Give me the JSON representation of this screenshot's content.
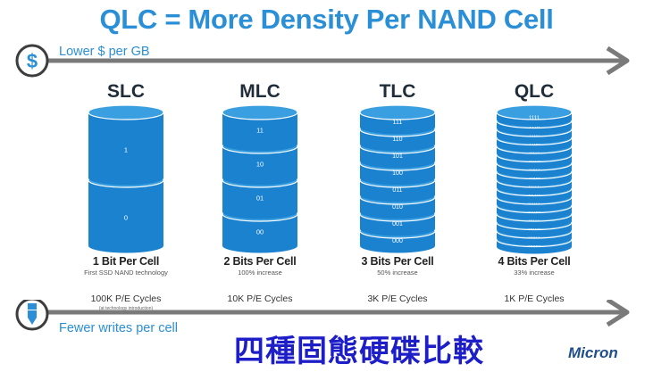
{
  "title": "QLC = More Density Per NAND Cell",
  "top_arrow": {
    "label": "Lower $ per GB",
    "icon": "dollar-icon"
  },
  "bottom_arrow": {
    "label": "Fewer writes per cell",
    "icon": "pen-icon"
  },
  "columns": [
    {
      "name": "SLC",
      "bits_label": "1 Bit Per Cell",
      "subtitle": "First SSD NAND technology",
      "cycles": "100K P/E Cycles",
      "note": "(at technology introduction)",
      "layers": [
        "1",
        "0"
      ]
    },
    {
      "name": "MLC",
      "bits_label": "2 Bits Per Cell",
      "subtitle": "100% increase",
      "cycles": "10K P/E Cycles",
      "note": "",
      "layers": [
        "11",
        "10",
        "01",
        "00"
      ]
    },
    {
      "name": "TLC",
      "bits_label": "3 Bits Per Cell",
      "subtitle": "50% increase",
      "cycles": "3K P/E Cycles",
      "note": "",
      "layers": [
        "111",
        "110",
        "101",
        "100",
        "011",
        "010",
        "001",
        "000"
      ]
    },
    {
      "name": "QLC",
      "bits_label": "4 Bits Per Cell",
      "subtitle": "33% increase",
      "cycles": "1K P/E Cycles",
      "note": "",
      "layers": [
        "1111",
        "1110",
        "1101",
        "1100",
        "1011",
        "1010",
        "1001",
        "1000",
        "0111",
        "0110",
        "0101",
        "0100",
        "0011",
        "0010",
        "0001",
        "0000"
      ]
    }
  ],
  "caption_chinese": "四種固態硬碟比較",
  "brand": "Micron",
  "colors": {
    "blue": "#1b82d0",
    "blue_light": "#3a9fe0",
    "title": "#2a8fd6",
    "arrow": "#7a7a7a",
    "chinese": "#1e1ec8"
  }
}
